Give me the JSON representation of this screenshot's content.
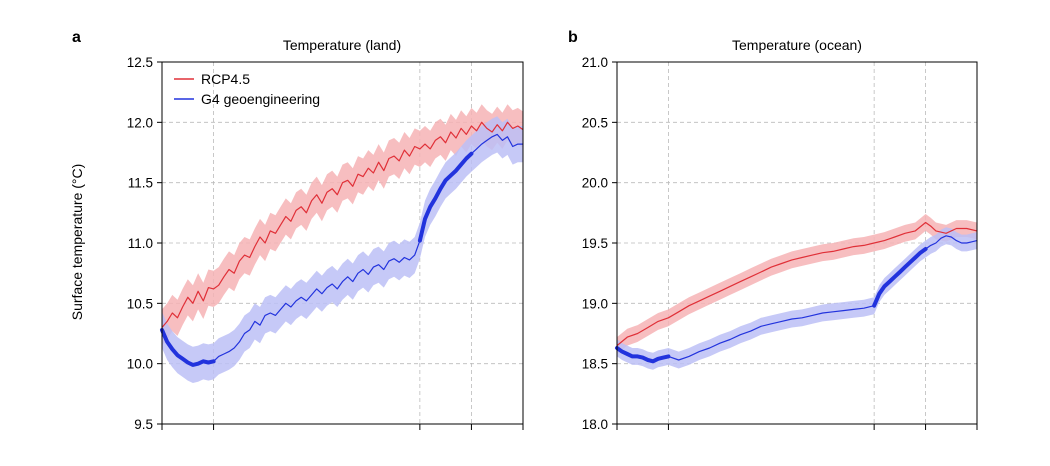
{
  "ylabel": "Surface temperature (°C)",
  "legend": [
    {
      "name": "RCP4.5",
      "color": "#e03038"
    },
    {
      "name": "G4 geoengineering",
      "color": "#2233dd"
    }
  ],
  "colors": {
    "rcp": "#e03038",
    "rcp_band": "#f6b3b5",
    "g4": "#2233dd",
    "g4_band": "#bcc0f6",
    "grid": "#bbbbbb"
  },
  "chart_data": [
    {
      "type": "line",
      "panel": "a",
      "title": "Temperature (land)",
      "xlim": [
        0,
        70
      ],
      "ylim": [
        9.5,
        12.5
      ],
      "yticks": [
        "9.5",
        "10.0",
        "10.5",
        "11.0",
        "11.5",
        "12.0",
        "12.5"
      ],
      "grid": true,
      "legend_position": "top-left",
      "x_gridlines": [
        10,
        50,
        60
      ],
      "thick_segments": [
        [
          0,
          10
        ],
        [
          50,
          60
        ]
      ],
      "series": [
        {
          "name": "RCP4.5",
          "key": "rcp",
          "band": 0.15,
          "points": [
            [
              0,
              10.3
            ],
            [
              1,
              10.35
            ],
            [
              2,
              10.42
            ],
            [
              3,
              10.38
            ],
            [
              4,
              10.47
            ],
            [
              5,
              10.55
            ],
            [
              6,
              10.5
            ],
            [
              7,
              10.6
            ],
            [
              8,
              10.52
            ],
            [
              9,
              10.63
            ],
            [
              10,
              10.62
            ],
            [
              11,
              10.65
            ],
            [
              12,
              10.72
            ],
            [
              13,
              10.78
            ],
            [
              14,
              10.75
            ],
            [
              15,
              10.85
            ],
            [
              16,
              10.9
            ],
            [
              17,
              10.88
            ],
            [
              18,
              10.97
            ],
            [
              19,
              11.05
            ],
            [
              20,
              11.0
            ],
            [
              21,
              11.1
            ],
            [
              22,
              11.08
            ],
            [
              23,
              11.15
            ],
            [
              24,
              11.22
            ],
            [
              25,
              11.18
            ],
            [
              26,
              11.27
            ],
            [
              27,
              11.3
            ],
            [
              28,
              11.25
            ],
            [
              29,
              11.35
            ],
            [
              30,
              11.4
            ],
            [
              31,
              11.33
            ],
            [
              32,
              11.42
            ],
            [
              33,
              11.45
            ],
            [
              34,
              11.4
            ],
            [
              35,
              11.5
            ],
            [
              36,
              11.52
            ],
            [
              37,
              11.47
            ],
            [
              38,
              11.57
            ],
            [
              39,
              11.55
            ],
            [
              40,
              11.62
            ],
            [
              41,
              11.58
            ],
            [
              42,
              11.67
            ],
            [
              43,
              11.6
            ],
            [
              44,
              11.7
            ],
            [
              45,
              11.72
            ],
            [
              46,
              11.68
            ],
            [
              47,
              11.77
            ],
            [
              48,
              11.72
            ],
            [
              49,
              11.8
            ],
            [
              50,
              11.78
            ],
            [
              51,
              11.82
            ],
            [
              52,
              11.78
            ],
            [
              53,
              11.85
            ],
            [
              54,
              11.88
            ],
            [
              55,
              11.83
            ],
            [
              56,
              11.92
            ],
            [
              57,
              11.87
            ],
            [
              58,
              11.95
            ],
            [
              59,
              11.9
            ],
            [
              60,
              11.97
            ],
            [
              61,
              11.93
            ],
            [
              62,
              12.0
            ],
            [
              63,
              11.95
            ],
            [
              64,
              11.92
            ],
            [
              65,
              11.98
            ],
            [
              66,
              11.93
            ],
            [
              67,
              12.0
            ],
            [
              68,
              11.95
            ],
            [
              69,
              11.97
            ],
            [
              70,
              11.94
            ]
          ]
        },
        {
          "name": "G4 geoengineering",
          "key": "g4",
          "band": 0.15,
          "points": [
            [
              0,
              10.28
            ],
            [
              1,
              10.18
            ],
            [
              2,
              10.12
            ],
            [
              3,
              10.07
            ],
            [
              4,
              10.04
            ],
            [
              5,
              10.01
            ],
            [
              6,
              9.99
            ],
            [
              7,
              10.0
            ],
            [
              8,
              10.02
            ],
            [
              9,
              10.01
            ],
            [
              10,
              10.02
            ],
            [
              11,
              10.06
            ],
            [
              12,
              10.08
            ],
            [
              13,
              10.1
            ],
            [
              14,
              10.13
            ],
            [
              15,
              10.18
            ],
            [
              16,
              10.25
            ],
            [
              17,
              10.28
            ],
            [
              18,
              10.35
            ],
            [
              19,
              10.32
            ],
            [
              20,
              10.4
            ],
            [
              21,
              10.42
            ],
            [
              22,
              10.4
            ],
            [
              23,
              10.45
            ],
            [
              24,
              10.5
            ],
            [
              25,
              10.47
            ],
            [
              26,
              10.52
            ],
            [
              27,
              10.55
            ],
            [
              28,
              10.52
            ],
            [
              29,
              10.57
            ],
            [
              30,
              10.62
            ],
            [
              31,
              10.58
            ],
            [
              32,
              10.63
            ],
            [
              33,
              10.66
            ],
            [
              34,
              10.62
            ],
            [
              35,
              10.68
            ],
            [
              36,
              10.72
            ],
            [
              37,
              10.68
            ],
            [
              38,
              10.75
            ],
            [
              39,
              10.78
            ],
            [
              40,
              10.74
            ],
            [
              41,
              10.8
            ],
            [
              42,
              10.82
            ],
            [
              43,
              10.78
            ],
            [
              44,
              10.85
            ],
            [
              45,
              10.87
            ],
            [
              46,
              10.84
            ],
            [
              47,
              10.88
            ],
            [
              48,
              10.86
            ],
            [
              49,
              10.9
            ],
            [
              50,
              11.02
            ],
            [
              51,
              11.2
            ],
            [
              52,
              11.3
            ],
            [
              53,
              11.37
            ],
            [
              54,
              11.45
            ],
            [
              55,
              11.52
            ],
            [
              56,
              11.56
            ],
            [
              57,
              11.6
            ],
            [
              58,
              11.65
            ],
            [
              59,
              11.7
            ],
            [
              60,
              11.74
            ],
            [
              61,
              11.78
            ],
            [
              62,
              11.82
            ],
            [
              63,
              11.85
            ],
            [
              64,
              11.88
            ],
            [
              65,
              11.9
            ],
            [
              66,
              11.85
            ],
            [
              67,
              11.88
            ],
            [
              68,
              11.8
            ],
            [
              69,
              11.82
            ],
            [
              70,
              11.82
            ]
          ]
        }
      ]
    },
    {
      "type": "line",
      "panel": "b",
      "title": "Temperature (ocean)",
      "xlim": [
        0,
        70
      ],
      "ylim": [
        18.0,
        21.0
      ],
      "yticks": [
        "18.0",
        "18.5",
        "19.0",
        "19.5",
        "20.0",
        "20.5",
        "21.0"
      ],
      "grid": true,
      "x_gridlines": [
        10,
        50,
        60
      ],
      "thick_segments": [
        [
          0,
          10
        ],
        [
          50,
          60
        ]
      ],
      "series": [
        {
          "name": "RCP4.5",
          "key": "rcp",
          "band": 0.07,
          "points": [
            [
              0,
              18.65
            ],
            [
              2,
              18.72
            ],
            [
              4,
              18.75
            ],
            [
              6,
              18.8
            ],
            [
              8,
              18.85
            ],
            [
              10,
              18.88
            ],
            [
              12,
              18.93
            ],
            [
              14,
              18.98
            ],
            [
              16,
              19.02
            ],
            [
              18,
              19.06
            ],
            [
              20,
              19.1
            ],
            [
              22,
              19.14
            ],
            [
              24,
              19.18
            ],
            [
              26,
              19.22
            ],
            [
              28,
              19.26
            ],
            [
              30,
              19.3
            ],
            [
              32,
              19.33
            ],
            [
              34,
              19.36
            ],
            [
              36,
              19.38
            ],
            [
              38,
              19.4
            ],
            [
              40,
              19.42
            ],
            [
              42,
              19.43
            ],
            [
              44,
              19.45
            ],
            [
              46,
              19.47
            ],
            [
              48,
              19.48
            ],
            [
              50,
              19.5
            ],
            [
              52,
              19.52
            ],
            [
              54,
              19.55
            ],
            [
              56,
              19.58
            ],
            [
              58,
              19.6
            ],
            [
              60,
              19.67
            ],
            [
              61,
              19.64
            ],
            [
              62,
              19.6
            ],
            [
              64,
              19.58
            ],
            [
              66,
              19.62
            ],
            [
              68,
              19.62
            ],
            [
              70,
              19.6
            ]
          ]
        },
        {
          "name": "G4 geoengineering",
          "key": "g4",
          "band": 0.07,
          "points": [
            [
              0,
              18.63
            ],
            [
              1,
              18.6
            ],
            [
              2,
              18.58
            ],
            [
              3,
              18.56
            ],
            [
              4,
              18.56
            ],
            [
              5,
              18.55
            ],
            [
              6,
              18.53
            ],
            [
              7,
              18.52
            ],
            [
              8,
              18.54
            ],
            [
              9,
              18.55
            ],
            [
              10,
              18.56
            ],
            [
              12,
              18.53
            ],
            [
              14,
              18.56
            ],
            [
              16,
              18.6
            ],
            [
              18,
              18.63
            ],
            [
              20,
              18.67
            ],
            [
              22,
              18.7
            ],
            [
              24,
              18.74
            ],
            [
              26,
              18.77
            ],
            [
              28,
              18.81
            ],
            [
              30,
              18.83
            ],
            [
              32,
              18.85
            ],
            [
              34,
              18.87
            ],
            [
              36,
              18.88
            ],
            [
              38,
              18.9
            ],
            [
              40,
              18.92
            ],
            [
              42,
              18.93
            ],
            [
              44,
              18.94
            ],
            [
              46,
              18.95
            ],
            [
              48,
              18.96
            ],
            [
              50,
              18.98
            ],
            [
              51,
              19.08
            ],
            [
              52,
              19.14
            ],
            [
              53,
              19.18
            ],
            [
              54,
              19.22
            ],
            [
              55,
              19.26
            ],
            [
              56,
              19.3
            ],
            [
              57,
              19.34
            ],
            [
              58,
              19.38
            ],
            [
              59,
              19.42
            ],
            [
              60,
              19.45
            ],
            [
              61,
              19.48
            ],
            [
              62,
              19.5
            ],
            [
              63,
              19.54
            ],
            [
              64,
              19.56
            ],
            [
              65,
              19.55
            ],
            [
              66,
              19.52
            ],
            [
              67,
              19.5
            ],
            [
              68,
              19.5
            ],
            [
              69,
              19.51
            ],
            [
              70,
              19.52
            ]
          ]
        }
      ]
    }
  ]
}
